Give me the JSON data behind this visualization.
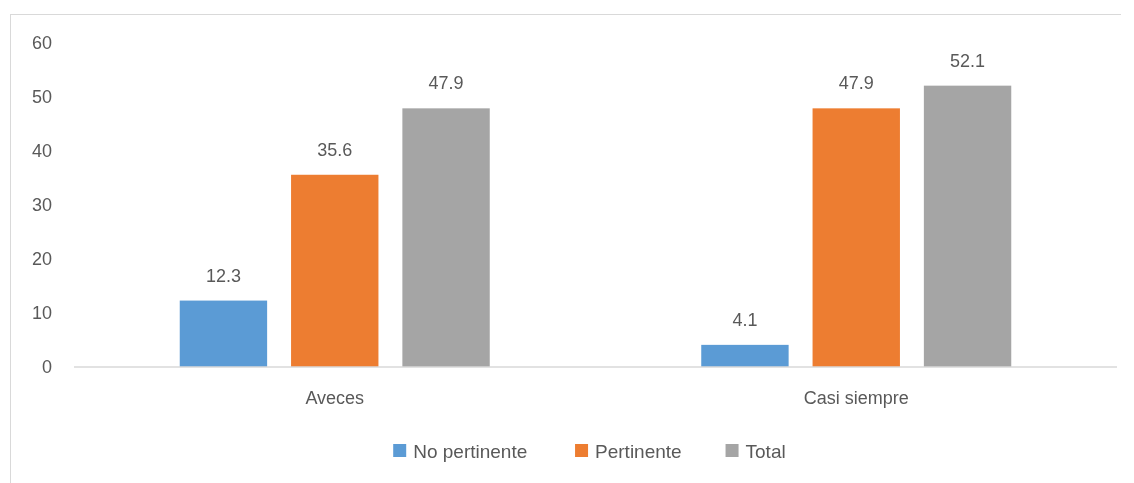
{
  "chart_data": {
    "type": "bar",
    "categories": [
      "Aveces",
      "Casi siempre"
    ],
    "series": [
      {
        "name": "No pertinente",
        "color": "#5b9bd5",
        "values": [
          12.3,
          4.1
        ]
      },
      {
        "name": "Pertinente",
        "color": "#ed7d31",
        "values": [
          35.6,
          47.9
        ]
      },
      {
        "name": "Total",
        "color": "#a5a5a5",
        "values": [
          47.9,
          52.1
        ]
      }
    ],
    "ylim": [
      0,
      60
    ],
    "yticks": [
      0,
      10,
      20,
      30,
      40,
      50,
      60
    ],
    "legend": "bottom",
    "data_labels": true
  }
}
